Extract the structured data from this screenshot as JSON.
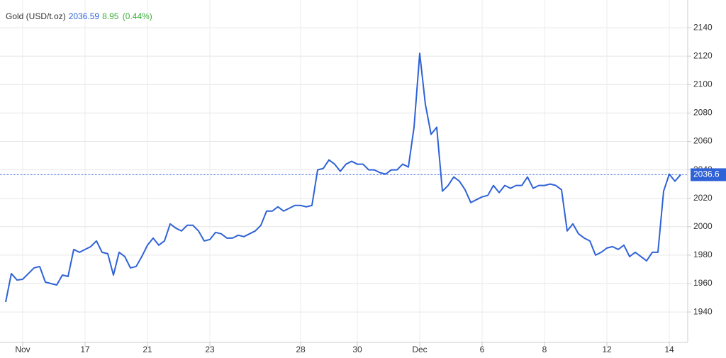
{
  "chart_data": {
    "type": "line",
    "title": "Gold (USD/t.oz)",
    "price": "2036.59",
    "change": "8.95",
    "change_pct": "(0.44%)",
    "categories": [
      null,
      null,
      null,
      "Nov",
      null,
      null,
      null,
      null,
      null,
      null,
      null,
      null,
      null,
      null,
      "17",
      null,
      null,
      null,
      null,
      null,
      null,
      null,
      null,
      null,
      null,
      "21",
      null,
      null,
      null,
      null,
      null,
      null,
      null,
      null,
      null,
      null,
      "23",
      null,
      null,
      null,
      null,
      null,
      null,
      null,
      null,
      null,
      null,
      null,
      null,
      null,
      null,
      null,
      "28",
      null,
      null,
      null,
      null,
      null,
      null,
      null,
      null,
      null,
      "30",
      null,
      null,
      null,
      null,
      null,
      null,
      null,
      null,
      null,
      null,
      "Dec",
      null,
      null,
      null,
      null,
      null,
      null,
      null,
      null,
      null,
      null,
      "6",
      null,
      null,
      null,
      null,
      null,
      null,
      null,
      null,
      null,
      null,
      "8",
      null,
      null,
      null,
      null,
      null,
      null,
      null,
      null,
      null,
      null,
      "12",
      null,
      null,
      null,
      null,
      null,
      null,
      null,
      null,
      null,
      null,
      "14",
      null,
      null
    ],
    "series": [
      {
        "name": "Gold",
        "color": "#2f62d6",
        "values": [
          1947,
          1967,
          1962.5,
          1963,
          1967,
          1971,
          1972,
          1961,
          1960,
          1959,
          1966,
          1965,
          1984,
          1982,
          1984,
          1986,
          1990,
          1982,
          1981,
          1966,
          1982,
          1979,
          1971,
          1972,
          1979,
          1987,
          1992,
          1987,
          1990,
          2002,
          1999,
          1997,
          2001,
          2001,
          1997,
          1990,
          1991,
          1996,
          1995,
          1992,
          1992,
          1994,
          1993,
          1995,
          1997,
          2001,
          2011,
          2011,
          2014,
          2011,
          2013,
          2015,
          2015,
          2014,
          2015,
          2040,
          2041,
          2047,
          2044,
          2039,
          2044,
          2046,
          2044,
          2044,
          2040,
          2040,
          2038,
          2037,
          2040,
          2040,
          2044,
          2042,
          2070,
          2122,
          2086,
          2065,
          2070,
          2025,
          2029,
          2035,
          2032,
          2026,
          2017,
          2019,
          2021,
          2022,
          2029,
          2024,
          2029,
          2027,
          2029,
          2029,
          2035,
          2027,
          2029,
          2029,
          2030,
          2029,
          2026,
          1997,
          2002,
          1995,
          1992,
          1990,
          1980,
          1982,
          1985,
          1986,
          1984,
          1987,
          1979,
          1982,
          1979,
          1976,
          1982,
          1982,
          2025,
          2037,
          2032,
          2036.59
        ]
      }
    ],
    "last_price": {
      "value": 2036.59,
      "label": "2036.6"
    },
    "ylim": [
      1918.6,
      2159.5
    ],
    "yticks": [
      1940,
      1960,
      1980,
      2000,
      2020,
      2040,
      2060,
      2080,
      2100,
      2120,
      2140
    ],
    "grid": true
  }
}
